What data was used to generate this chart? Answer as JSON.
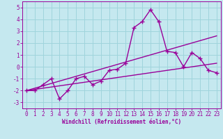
{
  "xlabel": "Windchill (Refroidissement éolien,°C)",
  "x": [
    0,
    1,
    2,
    3,
    4,
    5,
    6,
    7,
    8,
    9,
    10,
    11,
    12,
    13,
    14,
    15,
    16,
    17,
    18,
    19,
    20,
    21,
    22,
    23
  ],
  "y_main": [
    -2,
    -2,
    -1.5,
    -1,
    -2.7,
    -2,
    -1,
    -0.8,
    -1.5,
    -1.2,
    -0.3,
    -0.2,
    0.3,
    3.3,
    3.8,
    4.8,
    3.8,
    1.3,
    1.2,
    0.0,
    1.2,
    0.7,
    -0.3,
    -0.5
  ],
  "y_line1": [
    -2.0,
    -1.8,
    -1.6,
    -1.4,
    -1.2,
    -1.0,
    -0.8,
    -0.6,
    -0.4,
    -0.2,
    0.0,
    0.2,
    0.4,
    0.6,
    0.8,
    1.0,
    1.2,
    1.4,
    1.6,
    1.8,
    2.0,
    2.2,
    2.4,
    2.6
  ],
  "y_line2": [
    -2.0,
    -1.9,
    -1.8,
    -1.7,
    -1.6,
    -1.5,
    -1.4,
    -1.3,
    -1.2,
    -1.1,
    -1.0,
    -0.9,
    -0.8,
    -0.7,
    -0.6,
    -0.5,
    -0.4,
    -0.3,
    -0.2,
    -0.1,
    0.0,
    0.1,
    0.2,
    0.3
  ],
  "ylim": [
    -3.5,
    5.5
  ],
  "yticks": [
    -3,
    -2,
    -1,
    0,
    1,
    2,
    3,
    4,
    5
  ],
  "xlim": [
    -0.5,
    23.5
  ],
  "bg_color": "#c5e8ef",
  "grid_color": "#9fd4dc",
  "line_color": "#990099",
  "marker": "+",
  "markersize": 5,
  "linewidth": 1.0
}
